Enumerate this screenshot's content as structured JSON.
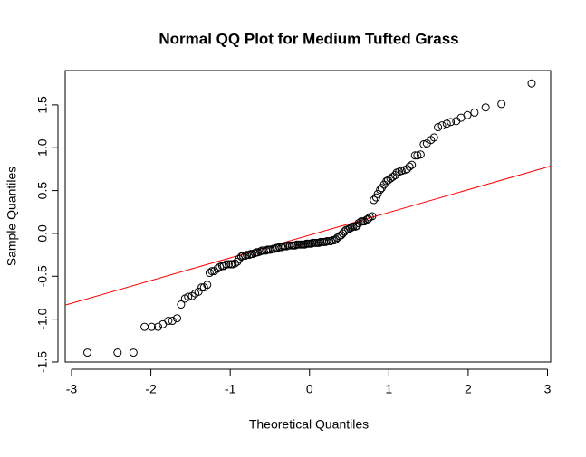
{
  "chart_data": {
    "type": "scatter",
    "title": "Normal QQ Plot for Medium Tufted Grass",
    "x_label": "Theoretical Quantiles",
    "y_label": "Sample Quantiles",
    "xlim": [
      -3.08,
      3.04
    ],
    "ylim": [
      -1.5,
      1.9
    ],
    "xticks": [
      -3,
      -2,
      -1,
      0,
      1,
      2,
      3
    ],
    "yticks": [
      -1.5,
      {
        "value": -1.0,
        "label": "-1.0"
      },
      -0.5,
      {
        "value": 0.0,
        "label": "0.0"
      },
      0.5,
      {
        "value": 1.0,
        "label": "1.0"
      },
      1.5
    ],
    "marker_color": "#000000",
    "x": [
      -2.8,
      -2.42,
      -2.22,
      -2.08,
      -1.99,
      -1.91,
      -1.85,
      -1.78,
      -1.73,
      -1.67,
      -1.62,
      -1.57,
      -1.53,
      -1.48,
      -1.44,
      -1.4,
      -1.36,
      -1.33,
      -1.29,
      -1.26,
      -1.23,
      -1.2,
      -1.16,
      -1.13,
      -1.1,
      -1.08,
      -1.05,
      -1.02,
      -0.99,
      -0.97,
      -0.94,
      -0.91,
      -0.89,
      -0.86,
      -0.84,
      -0.81,
      -0.79,
      -0.76,
      -0.74,
      -0.72,
      -0.69,
      -0.67,
      -0.65,
      -0.62,
      -0.6,
      -0.58,
      -0.55,
      -0.53,
      -0.51,
      -0.49,
      -0.46,
      -0.44,
      -0.42,
      -0.4,
      -0.38,
      -0.35,
      -0.33,
      -0.31,
      -0.29,
      -0.27,
      -0.25,
      -0.22,
      -0.2,
      -0.18,
      -0.16,
      -0.14,
      -0.12,
      -0.1,
      -0.08,
      -0.06,
      -0.04,
      -0.02,
      0.0,
      0.02,
      0.04,
      0.06,
      0.08,
      0.1,
      0.12,
      0.14,
      0.16,
      0.18,
      0.2,
      0.22,
      0.25,
      0.27,
      0.29,
      0.31,
      0.33,
      0.35,
      0.38,
      0.4,
      0.42,
      0.44,
      0.46,
      0.49,
      0.51,
      0.53,
      0.55,
      0.58,
      0.6,
      0.62,
      0.65,
      0.67,
      0.69,
      0.72,
      0.74,
      0.76,
      0.79,
      0.81,
      0.84,
      0.86,
      0.89,
      0.91,
      0.94,
      0.97,
      0.99,
      1.02,
      1.05,
      1.08,
      1.1,
      1.13,
      1.16,
      1.2,
      1.23,
      1.26,
      1.29,
      1.33,
      1.36,
      1.4,
      1.44,
      1.48,
      1.53,
      1.57,
      1.62,
      1.67,
      1.73,
      1.78,
      1.85,
      1.91,
      1.99,
      2.08,
      2.22,
      2.42,
      2.8
    ],
    "values": [
      -1.39,
      -1.39,
      -1.39,
      -1.09,
      -1.09,
      -1.09,
      -1.06,
      -1.02,
      -1.02,
      -0.99,
      -0.83,
      -0.76,
      -0.74,
      -0.73,
      -0.7,
      -0.68,
      -0.63,
      -0.63,
      -0.6,
      -0.46,
      -0.44,
      -0.44,
      -0.41,
      -0.39,
      -0.38,
      -0.38,
      -0.36,
      -0.36,
      -0.36,
      -0.36,
      -0.35,
      -0.33,
      -0.3,
      -0.27,
      -0.26,
      -0.26,
      -0.25,
      -0.25,
      -0.24,
      -0.24,
      -0.23,
      -0.22,
      -0.22,
      -0.21,
      -0.2,
      -0.2,
      -0.2,
      -0.19,
      -0.19,
      -0.19,
      -0.18,
      -0.18,
      -0.17,
      -0.17,
      -0.16,
      -0.16,
      -0.15,
      -0.15,
      -0.15,
      -0.14,
      -0.14,
      -0.14,
      -0.14,
      -0.14,
      -0.13,
      -0.13,
      -0.13,
      -0.13,
      -0.13,
      -0.13,
      -0.12,
      -0.12,
      -0.12,
      -0.12,
      -0.11,
      -0.11,
      -0.11,
      -0.11,
      -0.11,
      -0.1,
      -0.1,
      -0.1,
      -0.1,
      -0.09,
      -0.09,
      -0.09,
      -0.08,
      -0.08,
      -0.07,
      -0.05,
      -0.03,
      -0.02,
      0.0,
      0.02,
      0.04,
      0.05,
      0.06,
      0.07,
      0.08,
      0.08,
      0.09,
      0.12,
      0.14,
      0.14,
      0.14,
      0.16,
      0.17,
      0.19,
      0.2,
      0.39,
      0.42,
      0.46,
      0.51,
      0.53,
      0.57,
      0.61,
      0.62,
      0.64,
      0.66,
      0.68,
      0.71,
      0.72,
      0.73,
      0.74,
      0.75,
      0.78,
      0.8,
      0.91,
      0.91,
      0.92,
      1.04,
      1.05,
      1.09,
      1.12,
      1.24,
      1.26,
      1.28,
      1.3,
      1.31,
      1.35,
      1.38,
      1.41,
      1.47,
      1.51,
      1.75
    ],
    "reference_line": {
      "intercept": -0.02,
      "slope": 0.265,
      "color": "#ff0000"
    }
  }
}
